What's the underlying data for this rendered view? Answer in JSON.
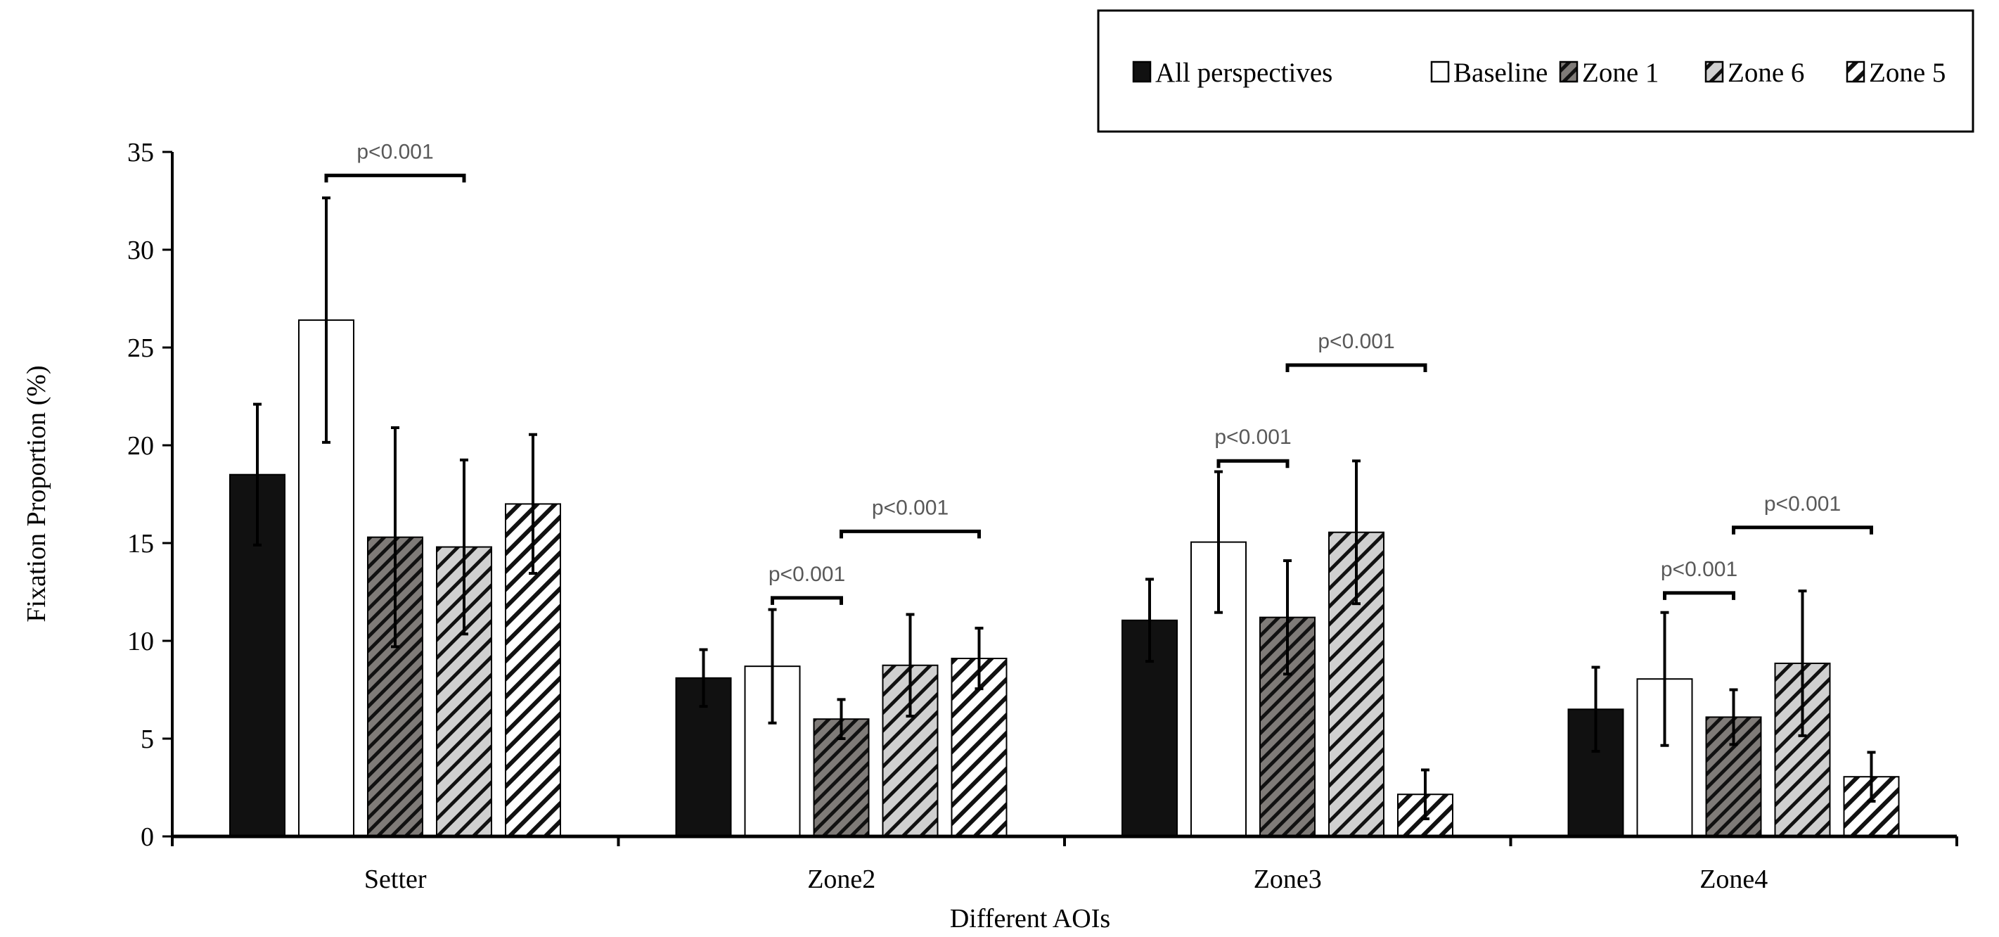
{
  "chart_data": {
    "type": "bar",
    "title": "",
    "xlabel": "Different AOIs",
    "ylabel": "Fixation Proportion (%)",
    "ylim": [
      0,
      35
    ],
    "yticks": [
      0,
      5,
      10,
      15,
      20,
      25,
      30,
      35
    ],
    "grid": false,
    "legend_placement": "top-right",
    "categories": [
      "Setter",
      "Zone2",
      "Zone3",
      "Zone4"
    ],
    "series": [
      {
        "name": "All perspectives",
        "fill": "#111111",
        "pattern": "solid",
        "values": [
          18.5,
          8.1,
          11.05,
          6.5
        ],
        "errors": [
          3.6,
          1.45,
          2.1,
          2.15
        ]
      },
      {
        "name": "Baseline",
        "fill": "#ffffff",
        "pattern": "solid",
        "values": [
          26.4,
          8.7,
          15.05,
          8.05
        ],
        "errors": [
          6.25,
          2.9,
          3.6,
          3.4
        ]
      },
      {
        "name": "Zone 1",
        "fill": "#7f7b78",
        "pattern": "dense-diagonal",
        "values": [
          15.3,
          6.0,
          11.2,
          6.1
        ],
        "errors": [
          5.6,
          1.0,
          2.9,
          1.4
        ]
      },
      {
        "name": "Zone 6",
        "fill": "#d0d0d0",
        "pattern": "wide-diagonal",
        "values": [
          14.8,
          8.75,
          15.55,
          8.85
        ],
        "errors": [
          4.45,
          2.6,
          3.65,
          3.7
        ]
      },
      {
        "name": "Zone 5",
        "fill": "#ffffff",
        "pattern": "wide-diagonal",
        "values": [
          17.0,
          9.1,
          2.15,
          3.05
        ],
        "errors": [
          3.55,
          1.55,
          1.25,
          1.25
        ]
      }
    ],
    "annotations": [
      {
        "category": 0,
        "from_series": 1,
        "to_series": 3,
        "y": 33.8,
        "text": "p<0.001"
      },
      {
        "category": 1,
        "from_series": 1,
        "to_series": 2,
        "y": 12.2,
        "text": "p<0.001"
      },
      {
        "category": 1,
        "from_series": 2,
        "to_series": 4,
        "y": 15.6,
        "text": "p<0.001"
      },
      {
        "category": 2,
        "from_series": 1,
        "to_series": 2,
        "y": 19.2,
        "text": "p<0.001"
      },
      {
        "category": 2,
        "from_series": 2,
        "to_series": 4,
        "y": 24.1,
        "text": "p<0.001"
      },
      {
        "category": 3,
        "from_series": 1,
        "to_series": 2,
        "y": 12.45,
        "text": "p<0.001"
      },
      {
        "category": 3,
        "from_series": 2,
        "to_series": 4,
        "y": 15.8,
        "text": "p<0.001"
      }
    ],
    "annotation_color": "#595959"
  }
}
